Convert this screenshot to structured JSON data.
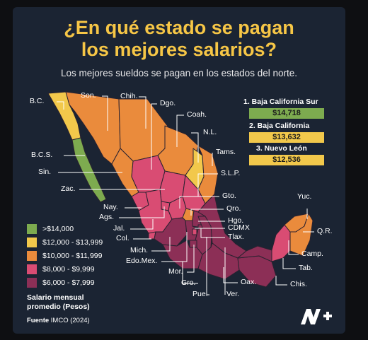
{
  "title": "¿En qué estado se pagan\nlos mejores salarios?",
  "subtitle": "Los mejores sueldos se pagan en los estados del norte.",
  "colors": {
    "background": "#1b2433",
    "title": "#f6c646",
    "bracket_1": "#7dab4f",
    "bracket_2": "#f2c84b",
    "bracket_3": "#ea8b3c",
    "bracket_4": "#d94c73",
    "bracket_5": "#8c2f56"
  },
  "ranking": [
    {
      "label": "1. Baja California Sur",
      "value": "$14,718",
      "color": "#7dab4f"
    },
    {
      "label": "2. Baja California",
      "value": "$13,632",
      "color": "#f2c84b"
    },
    {
      "label": "3. Nuevo León",
      "value": "$12,536",
      "color": "#f2c84b"
    }
  ],
  "legend": {
    "items": [
      {
        "label": ">$14,000",
        "color": "#7dab4f"
      },
      {
        "label": "$12,000 - $13,999",
        "color": "#f2c84b"
      },
      {
        "label": "$10,000 - $11,999",
        "color": "#ea8b3c"
      },
      {
        "label": "$8,000 - $9,999",
        "color": "#d94c73"
      },
      {
        "label": "$6,000 - $7,999",
        "color": "#8c2f56"
      }
    ],
    "title": "Salario mensual\npromedio (Pesos)"
  },
  "source": {
    "prefix": "Fuente",
    "text": "IMCO (2024)"
  },
  "logo_text": "N+",
  "state_labels": {
    "son": "Son.",
    "chih": "Chih.",
    "dgo": "Dgo.",
    "bc": "B.C.",
    "coah": "Coah.",
    "nl": "N.L.",
    "bcs": "B.C.S.",
    "tams": "Tams.",
    "sin": "Sin.",
    "slp": "S.L.P.",
    "zac": "Zac.",
    "gto": "Gto.",
    "nay": "Nay.",
    "qro": "Qro.",
    "ags": "Ags.",
    "hgo": "Hgo.",
    "jal": "Jal.",
    "cdmx": "CDMX",
    "tlax": "Tlax.",
    "col": "Col.",
    "mich": "Mich.",
    "edomex": "Edo.Mex.",
    "mor": "Mor.",
    "gro": "Gro.",
    "pue": "Pue.",
    "ver": "Ver.",
    "oax": "Oax.",
    "chis": "Chis.",
    "tab": "Tab.",
    "camp": "Camp.",
    "yuc": "Yuc.",
    "qr": "Q.R."
  },
  "map_data": {
    "type": "choropleth",
    "regions": [
      {
        "state": "Baja California Sur",
        "bracket": ">$14,000"
      },
      {
        "state": "Baja California",
        "bracket": "$12,000 - $13,999"
      },
      {
        "state": "Nuevo León",
        "bracket": "$12,000 - $13,999"
      },
      {
        "state": "Sonora",
        "bracket": "$10,000 - $11,999"
      },
      {
        "state": "Chihuahua",
        "bracket": "$10,000 - $11,999"
      },
      {
        "state": "Coahuila",
        "bracket": "$10,000 - $11,999"
      },
      {
        "state": "Tamaulipas",
        "bracket": "$10,000 - $11,999"
      },
      {
        "state": "Sinaloa",
        "bracket": "$10,000 - $11,999"
      },
      {
        "state": "Querétaro",
        "bracket": "$10,000 - $11,999"
      },
      {
        "state": "Quintana Roo",
        "bracket": "$10,000 - $11,999"
      },
      {
        "state": "Durango",
        "bracket": "$8,000 - $9,999"
      },
      {
        "state": "Zacatecas",
        "bracket": "$8,000 - $9,999"
      },
      {
        "state": "San Luis Potosí",
        "bracket": "$8,000 - $9,999"
      },
      {
        "state": "Jalisco",
        "bracket": "$8,000 - $9,999"
      },
      {
        "state": "Aguascalientes",
        "bracket": "$8,000 - $9,999"
      },
      {
        "state": "Guanajuato",
        "bracket": "$8,000 - $9,999"
      },
      {
        "state": "Nayarit",
        "bracket": "$8,000 - $9,999"
      },
      {
        "state": "Colima",
        "bracket": "$8,000 - $9,999"
      },
      {
        "state": "Campeche",
        "bracket": "$8,000 - $9,999"
      },
      {
        "state": "Yucatán",
        "bracket": "$8,000 - $9,999"
      },
      {
        "state": "Ciudad de México",
        "bracket": "$8,000 - $9,999"
      },
      {
        "state": "Michoacán",
        "bracket": "$6,000 - $7,999"
      },
      {
        "state": "Estado de México",
        "bracket": "$6,000 - $7,999"
      },
      {
        "state": "Hidalgo",
        "bracket": "$6,000 - $7,999"
      },
      {
        "state": "Tlaxcala",
        "bracket": "$6,000 - $7,999"
      },
      {
        "state": "Morelos",
        "bracket": "$6,000 - $7,999"
      },
      {
        "state": "Guerrero",
        "bracket": "$6,000 - $7,999"
      },
      {
        "state": "Puebla",
        "bracket": "$6,000 - $7,999"
      },
      {
        "state": "Veracruz",
        "bracket": "$6,000 - $7,999"
      },
      {
        "state": "Oaxaca",
        "bracket": "$6,000 - $7,999"
      },
      {
        "state": "Chiapas",
        "bracket": "$6,000 - $7,999"
      },
      {
        "state": "Tabasco",
        "bracket": "$6,000 - $7,999"
      }
    ]
  }
}
